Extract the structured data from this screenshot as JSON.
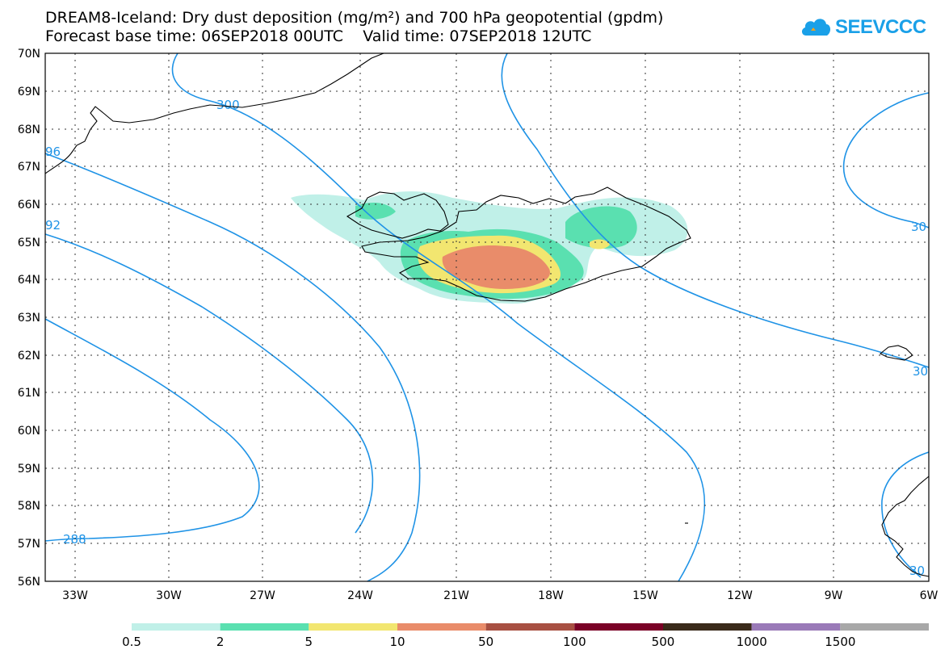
{
  "title": {
    "line1": "DREAM8-Iceland: Dry dust deposition (mg/m²) and 700 hPa geopotential (gpdm)",
    "line2": "Forecast base time: 06SEP2018 00UTC    Valid time: 07SEP2018 12UTC"
  },
  "logo": {
    "text": "SEEVCCC",
    "icon": "cloud-icon",
    "color": "#1aa0e8"
  },
  "axes": {
    "lat_labels": [
      "70N",
      "69N",
      "68N",
      "67N",
      "66N",
      "65N",
      "64N",
      "63N",
      "62N",
      "61N",
      "60N",
      "59N",
      "58N",
      "57N",
      "56N"
    ],
    "lon_labels": [
      "33W",
      "30W",
      "27W",
      "24W",
      "21W",
      "18W",
      "15W",
      "12W",
      "9W",
      "6W"
    ]
  },
  "contour_labels": {
    "c300_top": "300",
    "c296_left": "96",
    "c292_left": "92",
    "c288": "288",
    "c300_right_a": "30",
    "c300_right_b": "30",
    "c300_bottom_right": "30"
  },
  "legend": {
    "colors": [
      "#c0f0e8",
      "#5ae0b0",
      "#f2e670",
      "#e98c6a",
      "#a85042",
      "#7a0026",
      "#3a2a1a",
      "#9a7ab8",
      "#a8a8a8"
    ],
    "labels": [
      "0.5",
      "2",
      "5",
      "10",
      "50",
      "100",
      "500",
      "1000",
      "1500"
    ]
  }
}
